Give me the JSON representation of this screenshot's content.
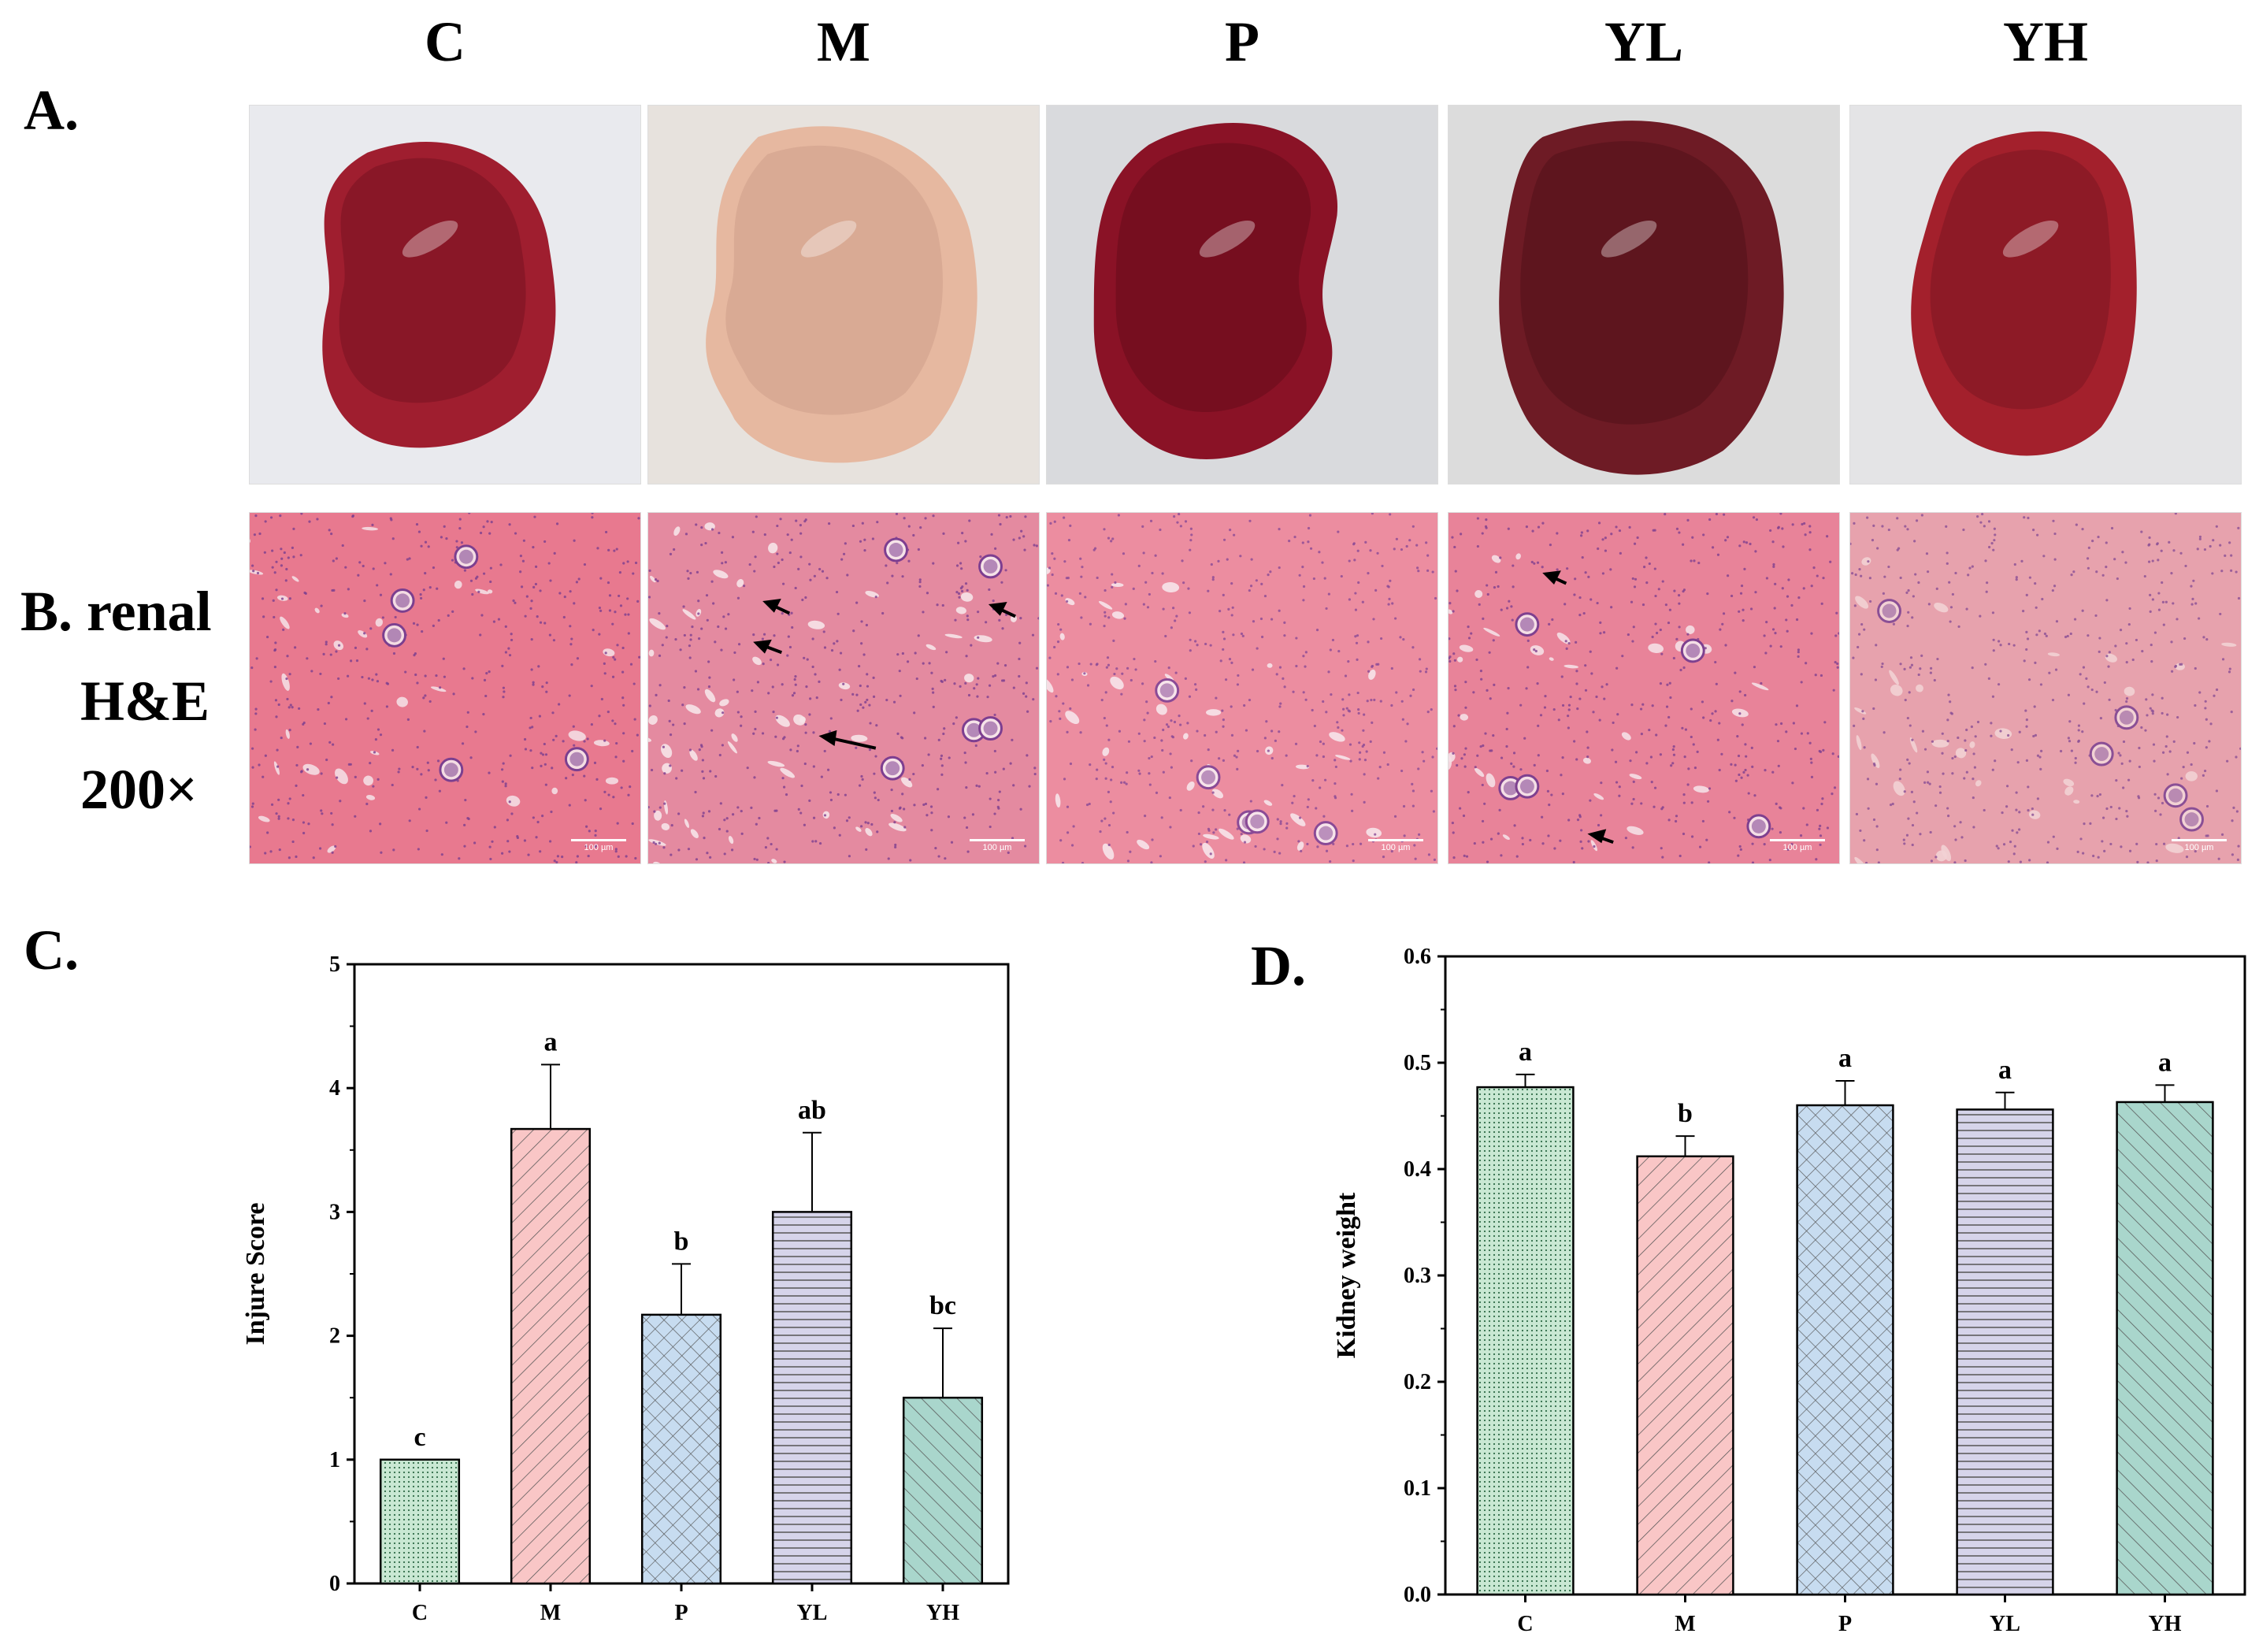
{
  "groups": [
    "C",
    "M",
    "P",
    "YL",
    "YH"
  ],
  "panels": {
    "a_label": "A.",
    "b_label_line1": "B. renal",
    "b_label_line2": "H&E",
    "b_label_line3": "200×",
    "c_label": "C.",
    "d_label": "D.",
    "scale_text": "100 µm"
  },
  "photos": [
    {
      "group": "C",
      "bg": "#e9eaee",
      "tissue": "#9f1e2f",
      "shade": "#6e1020"
    },
    {
      "group": "M",
      "bg": "#e7e2dd",
      "tissue": "#e6b8a0",
      "shade": "#c99a84"
    },
    {
      "group": "P",
      "bg": "#d9dadd",
      "tissue": "#8a1226",
      "shade": "#5e0a18"
    },
    {
      "group": "YL",
      "bg": "#dcdcdc",
      "tissue": "#6e1b25",
      "shade": "#4b0f17"
    },
    {
      "group": "YH",
      "bg": "#e4e4e6",
      "tissue": "#a3202c",
      "shade": "#741420"
    }
  ],
  "histology": [
    {
      "group": "C",
      "bg": "#e8798f",
      "lumen": "#f4dde3",
      "nuclei": "#7b3f8f"
    },
    {
      "group": "M",
      "bg": "#e48aa0",
      "lumen": "#f6e3e8",
      "nuclei": "#7d3e90"
    },
    {
      "group": "P",
      "bg": "#ec8da0",
      "lumen": "#f7e4ea",
      "nuclei": "#8a4a96"
    },
    {
      "group": "YL",
      "bg": "#e88399",
      "lumen": "#f5dfe6",
      "nuclei": "#7e408f"
    },
    {
      "group": "YH",
      "bg": "#e7a2ad",
      "lumen": "#f2d2d4",
      "nuclei": "#8a4f95"
    }
  ],
  "chart_data": [
    {
      "type": "bar",
      "categories": [
        "C",
        "M",
        "P",
        "YL",
        "YH"
      ],
      "values": [
        1.0,
        3.67,
        2.17,
        3.0,
        1.5
      ],
      "errors": [
        0,
        0.52,
        0.41,
        0.64,
        0.56
      ],
      "significance": [
        "c",
        "a",
        "b",
        "ab",
        "bc"
      ],
      "ylabel": "Injure Score",
      "xlabel": "",
      "ylim": [
        0,
        5
      ],
      "yticks": [
        "0",
        "1",
        "2",
        "3",
        "4",
        "5"
      ],
      "colors": [
        "#c9e8d3",
        "#f9c6c6",
        "#c7dcf0",
        "#d6d4ea",
        "#a9d6cc"
      ],
      "hatches": [
        "dots",
        "diag-right",
        "cross",
        "horizontal",
        "diag-left"
      ]
    },
    {
      "type": "bar",
      "categories": [
        "C",
        "M",
        "P",
        "YL",
        "YH"
      ],
      "values": [
        0.477,
        0.412,
        0.46,
        0.456,
        0.463
      ],
      "errors": [
        0.012,
        0.019,
        0.023,
        0.016,
        0.016
      ],
      "significance": [
        "a",
        "b",
        "a",
        "a",
        "a"
      ],
      "ylabel": "Kidney weight",
      "xlabel": "",
      "ylim": [
        0,
        0.6
      ],
      "yticks": [
        "0.0",
        "0.1",
        "0.2",
        "0.3",
        "0.4",
        "0.5",
        "0.6"
      ],
      "colors": [
        "#c9e8d3",
        "#f9c6c6",
        "#c7dcf0",
        "#d6d4ea",
        "#a9d6cc"
      ],
      "hatches": [
        "dots",
        "diag-right",
        "cross",
        "horizontal",
        "diag-left"
      ]
    }
  ]
}
